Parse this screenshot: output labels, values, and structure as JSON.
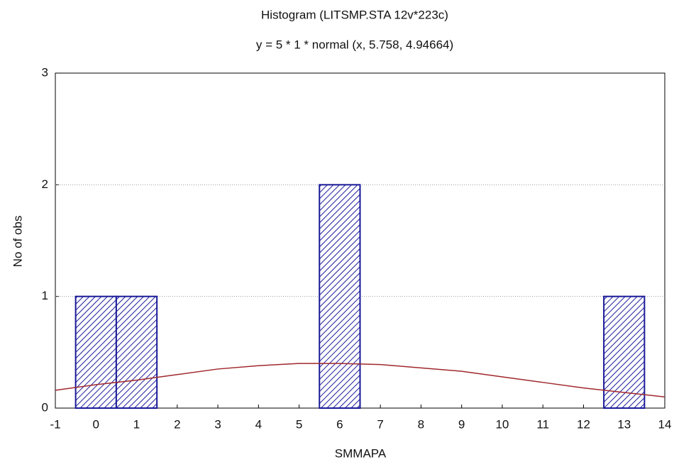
{
  "chart_data": {
    "type": "histogram",
    "title": "Histogram (LITSMP.STA 12v*223c)",
    "subtitle": "y = 5 * 1 * normal (x, 5.758, 4.94664)",
    "x_label": "SMMAPA",
    "y_label": "No of obs",
    "bins": [
      -0.5,
      0.5,
      1.5,
      2.5,
      3.5,
      4.5,
      5.5,
      6.5,
      7.5,
      8.5,
      9.5,
      10.5,
      11.5,
      12.5,
      13.5
    ],
    "values": [
      1,
      1,
      0,
      0,
      0,
      0,
      2,
      0,
      0,
      0,
      0,
      0,
      0,
      1
    ],
    "color": "#1a1a99",
    "curve": {
      "color": "#a0282c",
      "x": [
        -1,
        0,
        1,
        2,
        3,
        4,
        5,
        6,
        7,
        8,
        9,
        10,
        11,
        12,
        13,
        14
      ],
      "values": [
        0.16,
        0.21,
        0.25,
        0.3,
        0.35,
        0.38,
        0.4,
        0.4,
        0.39,
        0.36,
        0.33,
        0.28,
        0.23,
        0.18,
        0.14,
        0.1
      ]
    },
    "xlim": [
      -1,
      14
    ],
    "xticks": [
      -1,
      0,
      1,
      2,
      3,
      4,
      5,
      6,
      7,
      8,
      9,
      10,
      11,
      12,
      13,
      14
    ],
    "ylim": [
      0,
      3
    ],
    "yticks": [
      0,
      1,
      2,
      3
    ],
    "grid": true
  }
}
